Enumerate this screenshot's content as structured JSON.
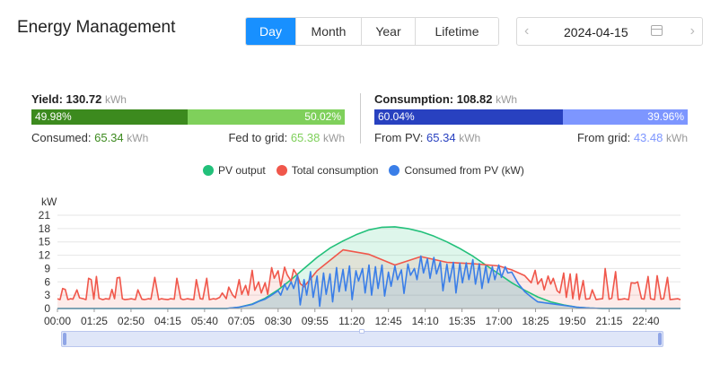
{
  "header": {
    "title": "Energy Management"
  },
  "period_tabs": [
    {
      "label": "Day",
      "active": true
    },
    {
      "label": "Month",
      "active": false
    },
    {
      "label": "Year",
      "active": false
    },
    {
      "label": "Lifetime",
      "active": false
    }
  ],
  "date_picker": {
    "value": "2024-04-15",
    "prev_icon": "chevron-left",
    "next_icon": "chevron-right",
    "calendar_icon": "calendar"
  },
  "yield": {
    "label": "Yield:",
    "value": "130.72",
    "unit": "kWh",
    "consumed_pct": "49.98%",
    "fed_pct": "50.02%",
    "consumed_fraction": 0.4998,
    "consumed_label": "Consumed:",
    "consumed_value": "65.34",
    "consumed_unit": "kWh",
    "fed_label": "Fed to grid:",
    "fed_value": "65.38",
    "fed_unit": "kWh",
    "colors": {
      "dark": "#3c8a1e",
      "light": "#7fd05b"
    }
  },
  "consumption": {
    "label": "Consumption:",
    "value": "108.82",
    "unit": "kWh",
    "pv_pct": "60.04%",
    "grid_pct": "39.96%",
    "pv_fraction": 0.6004,
    "pv_label": "From PV:",
    "pv_value": "65.34",
    "pv_unit": "kWh",
    "grid_label": "From grid:",
    "grid_value": "43.48",
    "grid_unit": "kWh",
    "colors": {
      "dark": "#2841c0",
      "light": "#7d96ff"
    }
  },
  "legend": [
    {
      "name": "PV output",
      "color": "#22c07a"
    },
    {
      "name": "Total consumption",
      "color": "#f0574b"
    },
    {
      "name": "Consumed from PV (kW)",
      "color": "#3a7ee8"
    }
  ],
  "chart_data": {
    "type": "area",
    "ylabel": "kW",
    "ylim": [
      0,
      21
    ],
    "y_ticks": [
      0,
      3,
      6,
      9,
      12,
      15,
      18,
      21
    ],
    "x_ticks": [
      "00:00",
      "01:25",
      "02:50",
      "04:15",
      "05:40",
      "07:05",
      "08:30",
      "09:55",
      "11:20",
      "12:45",
      "14:10",
      "15:35",
      "17:00",
      "18:25",
      "19:50",
      "21:15",
      "22:40"
    ],
    "x_domain_hours": [
      0,
      24
    ],
    "grid": true,
    "series": [
      {
        "name": "PV output",
        "color": "#22c07a",
        "x": [
          0,
          6.5,
          7.0,
          7.5,
          8.0,
          8.5,
          9.0,
          9.5,
          10.0,
          10.5,
          11.0,
          11.5,
          12.0,
          12.5,
          13.0,
          13.5,
          14.0,
          14.5,
          15.0,
          15.5,
          16.0,
          16.5,
          17.0,
          17.5,
          18.0,
          18.5,
          19.0,
          19.5,
          20.0,
          20.5,
          21.0,
          24
        ],
        "values": [
          0,
          0,
          0.3,
          1.0,
          2.3,
          4.2,
          6.5,
          9.0,
          11.5,
          13.6,
          15.2,
          16.6,
          17.7,
          18.3,
          18.4,
          18.0,
          17.3,
          16.3,
          15.0,
          13.5,
          11.8,
          9.8,
          7.8,
          5.8,
          4.1,
          2.6,
          1.5,
          0.8,
          0.3,
          0.1,
          0,
          0
        ]
      },
      {
        "name": "Total consumption",
        "color": "#f0574b",
        "x": [
          0,
          0.1,
          0.2,
          0.3,
          0.4,
          0.5,
          0.6,
          0.75,
          0.85,
          1.0,
          1.1,
          1.2,
          1.3,
          1.4,
          1.5,
          1.6,
          1.75,
          1.85,
          2.0,
          2.1,
          2.2,
          2.3,
          2.4,
          2.5,
          2.6,
          2.75,
          2.85,
          3.0,
          3.1,
          3.25,
          3.35,
          3.5,
          3.6,
          3.75,
          3.9,
          4.0,
          4.1,
          4.25,
          4.35,
          4.5,
          4.6,
          4.75,
          4.85,
          5.0,
          5.1,
          5.25,
          5.35,
          5.5,
          5.6,
          5.75,
          5.85,
          6.0,
          6.1,
          6.25,
          6.35,
          6.5,
          6.6,
          6.75,
          6.85,
          7.0,
          7.1,
          7.25,
          7.35,
          7.5,
          7.6,
          7.75,
          7.85,
          8.0,
          8.1,
          8.25,
          8.35,
          8.5,
          8.6,
          8.75,
          8.85,
          9.0,
          9.1,
          9.25,
          9.35,
          9.5,
          10.0,
          11.0,
          12.0,
          13.0,
          14.0,
          15.0,
          16.0,
          17.0,
          17.5,
          18.0,
          18.25,
          18.4,
          18.5,
          18.65,
          18.75,
          18.9,
          19.0,
          19.1,
          19.25,
          19.35,
          19.5,
          19.6,
          19.75,
          19.85,
          20.0,
          20.1,
          20.25,
          20.35,
          20.5,
          20.6,
          20.75,
          20.85,
          21.0,
          21.1,
          21.25,
          21.35,
          21.5,
          21.6,
          21.75,
          21.85,
          22.0,
          22.1,
          22.25,
          22.35,
          22.5,
          22.6,
          22.75,
          22.85,
          23.0,
          23.1,
          23.25,
          23.35,
          23.5,
          23.6,
          23.75,
          23.9,
          24.0
        ],
        "values": [
          2.2,
          2.0,
          4.5,
          4.3,
          2.0,
          2.2,
          2.1,
          4.2,
          2.4,
          2.2,
          2.0,
          6.8,
          6.5,
          2.1,
          7.2,
          2.3,
          2.0,
          2.2,
          2.1,
          4.3,
          2.2,
          6.9,
          7.0,
          2.2,
          2.0,
          2.1,
          2.2,
          2.0,
          4.2,
          2.1,
          2.0,
          2.2,
          2.1,
          7.0,
          2.0,
          2.2,
          2.1,
          2.0,
          2.2,
          2.1,
          6.8,
          2.2,
          2.0,
          2.2,
          2.1,
          2.0,
          6.5,
          2.2,
          2.1,
          6.8,
          2.0,
          2.2,
          2.1,
          2.5,
          3.5,
          2.2,
          4.8,
          3.0,
          2.4,
          6.5,
          3.2,
          5.2,
          3.0,
          8.6,
          4.1,
          6.0,
          3.5,
          5.8,
          3.2,
          9.2,
          6.8,
          8.5,
          5.0,
          9.3,
          7.6,
          6.2,
          8.8,
          7.3,
          5.6,
          4.9,
          8.5,
          13.2,
          12.2,
          9.8,
          11.7,
          10.4,
          10.1,
          9.6,
          8.7,
          7.4,
          5.8,
          8.6,
          5.5,
          6.7,
          4.2,
          7.3,
          5.5,
          6.8,
          4.0,
          3.5,
          8.0,
          2.5,
          7.8,
          2.2,
          7.8,
          2.0,
          6.3,
          2.1,
          2.2,
          4.2,
          2.0,
          2.1,
          2.2,
          9.0,
          2.1,
          2.3,
          8.3,
          2.0,
          2.1,
          2.2,
          2.0,
          5.8,
          5.7,
          6.0,
          2.2,
          2.1,
          7.2,
          2.2,
          2.0,
          7.4,
          2.1,
          2.2,
          7.0,
          2.0,
          2.1,
          2.2,
          2.0
        ]
      },
      {
        "name": "Consumed from PV (kW)",
        "color": "#3a7ee8",
        "x": [
          0,
          6.5,
          7.0,
          7.5,
          7.75,
          8.0,
          8.25,
          8.5,
          8.6,
          8.75,
          8.85,
          9.0,
          9.1,
          9.25,
          9.35,
          9.5,
          9.6,
          9.75,
          9.85,
          10.0,
          10.1,
          10.25,
          10.35,
          10.5,
          10.6,
          10.75,
          10.85,
          11.0,
          11.1,
          11.25,
          11.35,
          11.5,
          11.6,
          11.75,
          11.85,
          12.0,
          12.1,
          12.25,
          12.35,
          12.5,
          12.6,
          12.75,
          12.85,
          13.0,
          13.1,
          13.25,
          13.35,
          13.5,
          13.6,
          13.75,
          13.85,
          14.0,
          14.1,
          14.25,
          14.35,
          14.5,
          14.6,
          14.75,
          14.85,
          15.0,
          15.1,
          15.25,
          15.35,
          15.5,
          15.6,
          15.75,
          15.85,
          16.0,
          16.1,
          16.25,
          16.35,
          16.5,
          16.6,
          16.75,
          16.85,
          17.0,
          17.1,
          17.25,
          17.35,
          17.5,
          17.75,
          18.0,
          18.25,
          18.5,
          19.0,
          19.5,
          20.0,
          20.5,
          21.0,
          24
        ],
        "values": [
          0,
          0,
          0.3,
          0.9,
          1.6,
          2.1,
          3.0,
          4.0,
          3.0,
          5.5,
          4.2,
          6.0,
          4.5,
          7.5,
          0.8,
          6.5,
          3.0,
          8.3,
          2.5,
          7.3,
          0.5,
          8.0,
          3.2,
          7.8,
          1.5,
          9.2,
          3.8,
          8.8,
          4.0,
          9.6,
          2.0,
          8.5,
          6.2,
          9.0,
          3.5,
          9.8,
          3.0,
          9.4,
          4.5,
          9.8,
          2.8,
          8.2,
          5.0,
          9.6,
          6.5,
          8.7,
          3.4,
          10.0,
          7.5,
          9.0,
          6.5,
          11.8,
          8.0,
          11.2,
          6.8,
          11.5,
          7.8,
          10.5,
          4.0,
          10.0,
          6.0,
          10.4,
          3.5,
          10.2,
          5.8,
          10.3,
          6.5,
          11.0,
          5.5,
          10.1,
          4.5,
          9.6,
          5.8,
          9.4,
          6.5,
          9.8,
          7.0,
          9.4,
          8.0,
          8.2,
          5.6,
          3.8,
          2.6,
          1.5,
          1.1,
          0.7,
          0.3,
          0.1,
          0,
          0
        ]
      }
    ]
  }
}
